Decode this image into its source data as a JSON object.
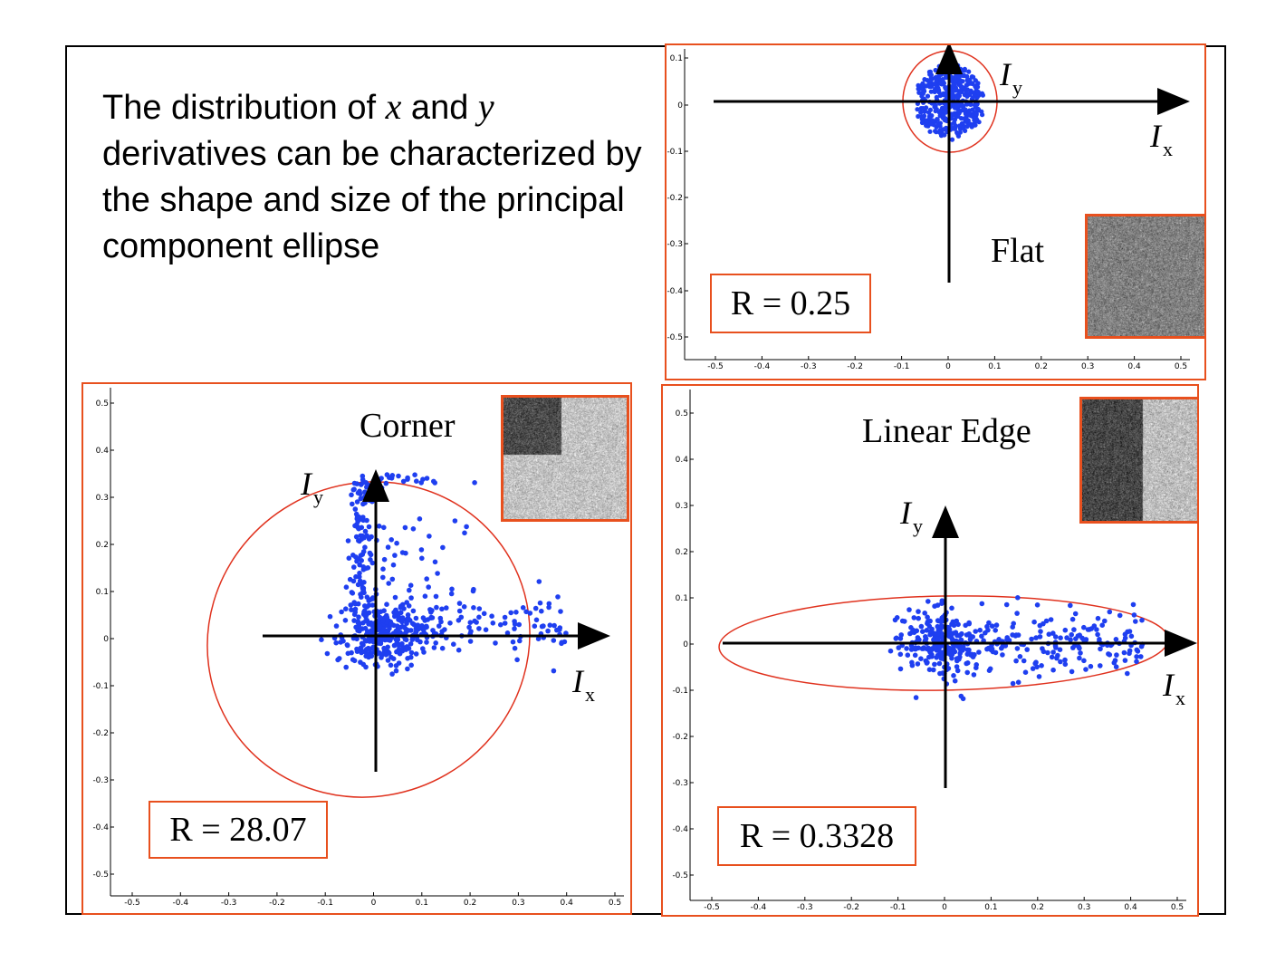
{
  "intro": {
    "line1_a": "The distribution of ",
    "var_x": "x",
    "line1_b": " and ",
    "var_y": "y",
    "rest": "derivatives can be characterized by the shape and size of the principal component ellipse"
  },
  "panels": [
    {
      "id": "flat",
      "label": "Flat",
      "r_text": "R = 0.25",
      "x_ticks": [
        "-0.5",
        "-0.4",
        "-0.3",
        "-0.2",
        "-0.1",
        "0",
        "0.1",
        "0.2",
        "0.3",
        "0.4",
        "0.5"
      ],
      "y_ticks": [
        "0.1",
        "0",
        "-0.1",
        "-0.2",
        "-0.3",
        "-0.4",
        "-0.5"
      ],
      "axis_x_label": "I",
      "axis_x_sub": "x",
      "axis_y_label": "I",
      "axis_y_sub": "y",
      "thumb": "uniform-noise"
    },
    {
      "id": "corner",
      "label": "Corner",
      "r_text": "R = 28.07",
      "x_ticks": [
        "-0.5",
        "-0.4",
        "-0.3",
        "-0.2",
        "-0.1",
        "0",
        "0.1",
        "0.2",
        "0.3",
        "0.4",
        "0.5"
      ],
      "y_ticks": [
        "0.5",
        "0.4",
        "0.3",
        "0.2",
        "0.1",
        "0",
        "-0.1",
        "-0.2",
        "-0.3",
        "-0.4",
        "-0.5"
      ],
      "axis_x_label": "I",
      "axis_x_sub": "x",
      "axis_y_label": "I",
      "axis_y_sub": "y",
      "thumb": "corner-noise"
    },
    {
      "id": "edge",
      "label": "Linear Edge",
      "r_text": "R = 0.3328",
      "x_ticks": [
        "-0.5",
        "-0.4",
        "-0.3",
        "-0.2",
        "-0.1",
        "0",
        "0.1",
        "0.2",
        "0.3",
        "0.4",
        "0.5"
      ],
      "y_ticks": [
        "0.5",
        "0.4",
        "0.3",
        "0.2",
        "0.1",
        "0",
        "-0.1",
        "-0.2",
        "-0.3",
        "-0.4",
        "-0.5"
      ],
      "axis_x_label": "I",
      "axis_x_sub": "x",
      "axis_y_label": "I",
      "axis_y_sub": "y",
      "thumb": "edge-noise"
    }
  ],
  "colors": {
    "frame": "#e8501e",
    "points": "#1f3ff0",
    "ellipse": "#e0321e",
    "axes": "#000000"
  }
}
